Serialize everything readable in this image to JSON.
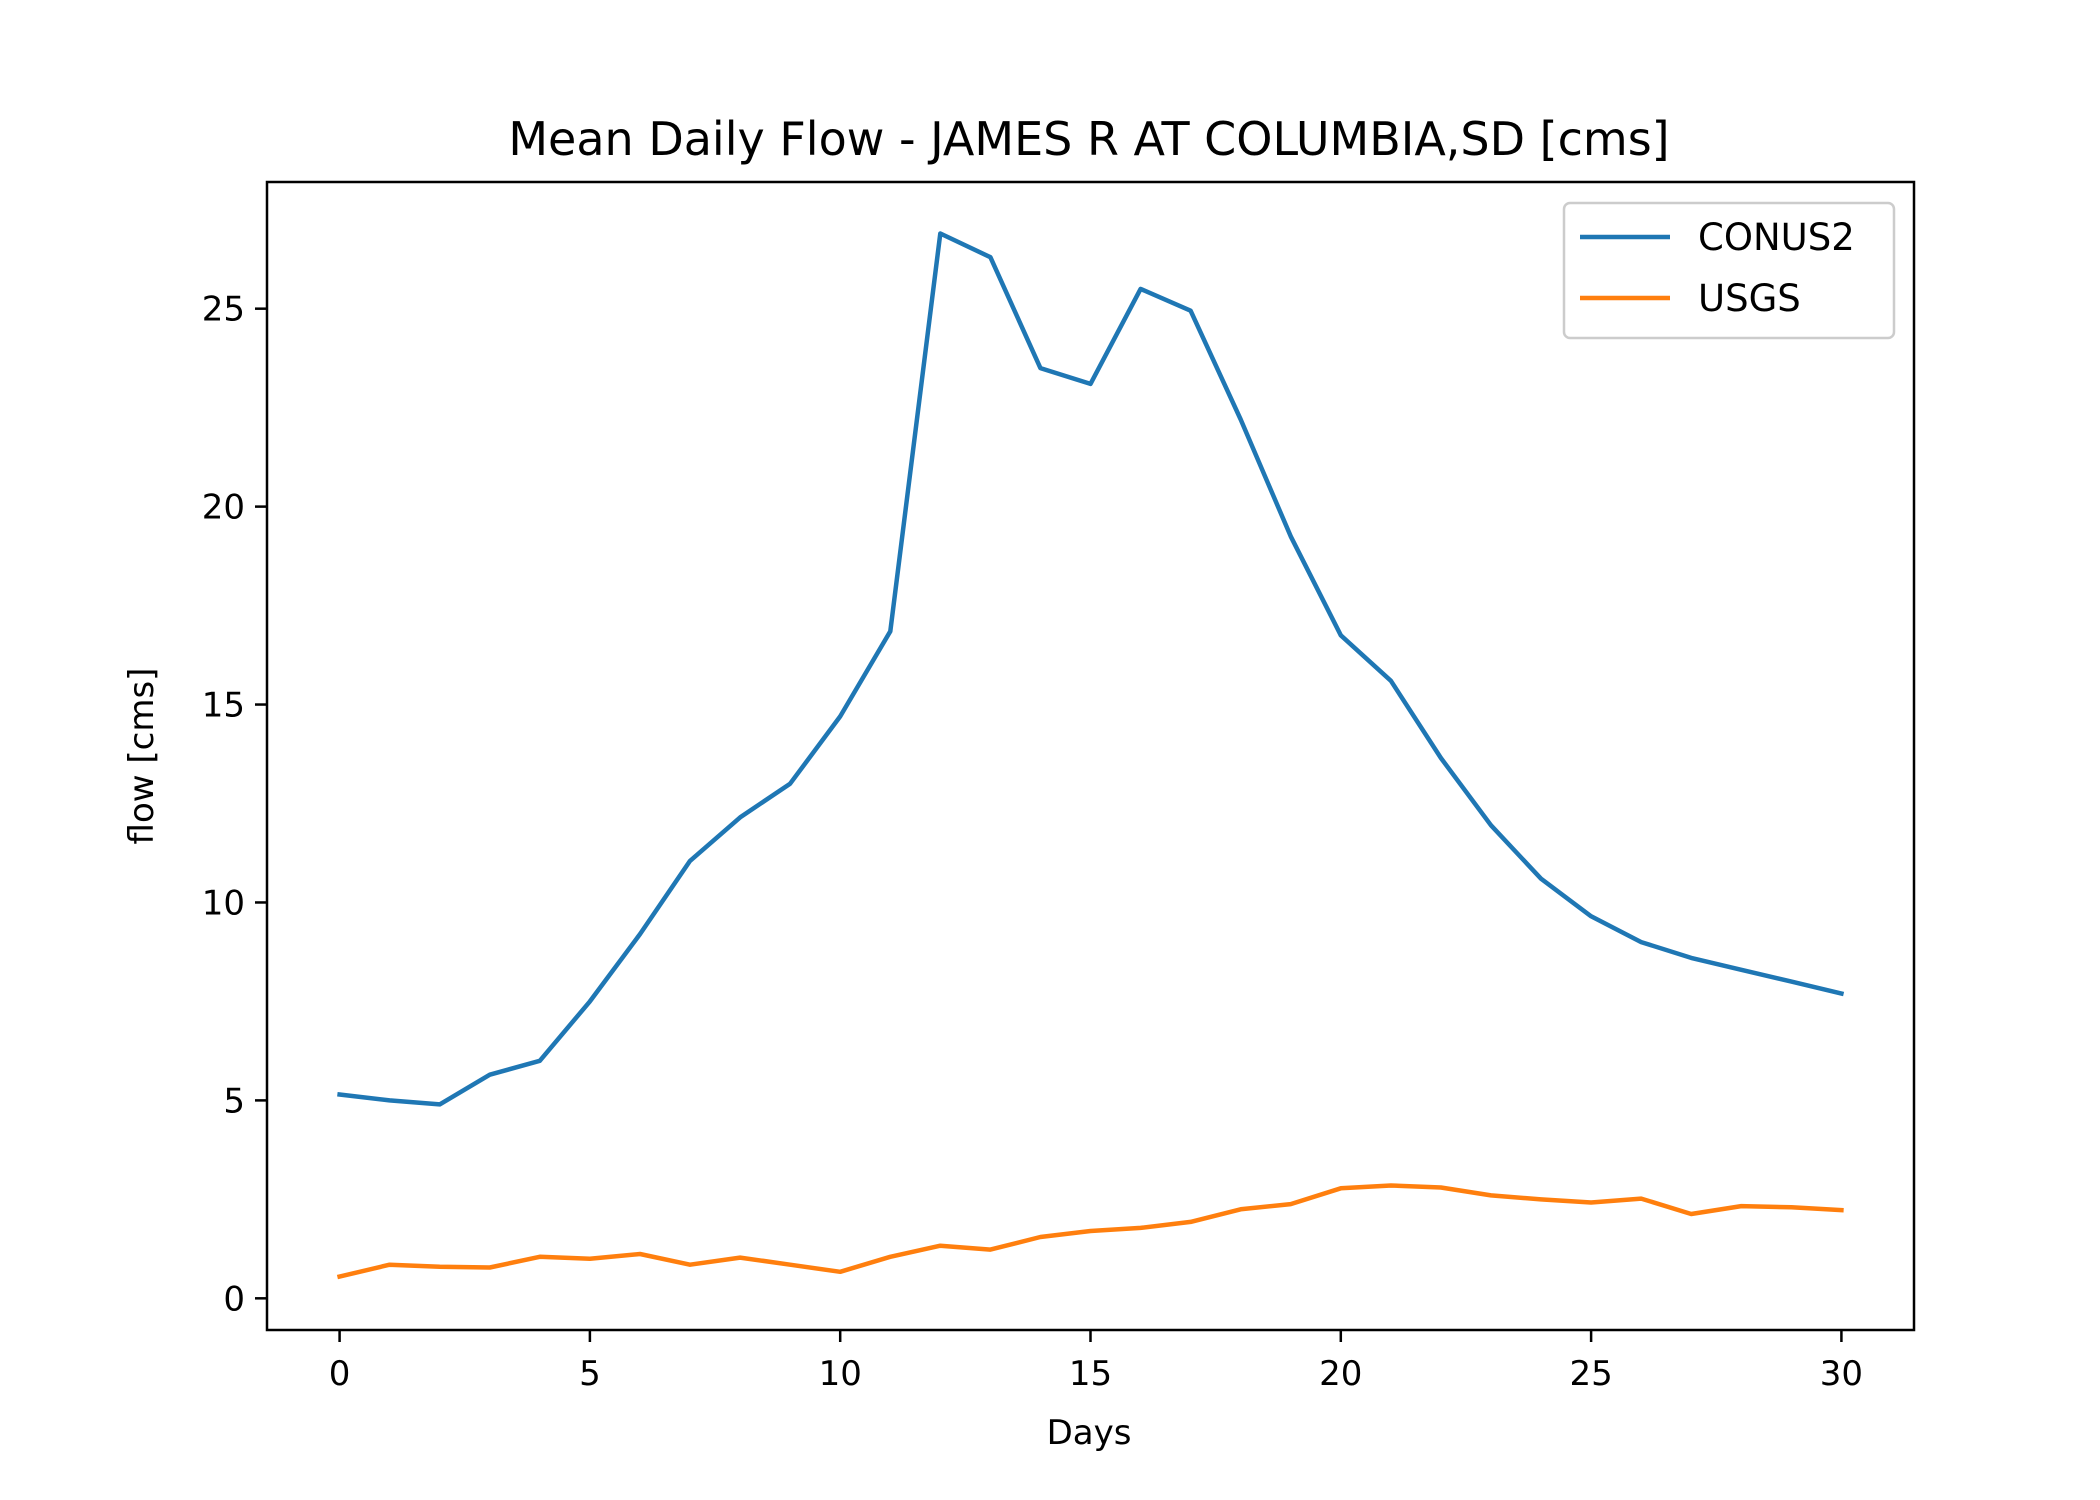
{
  "chart_data": {
    "type": "line",
    "title": "Mean Daily Flow - JAMES R AT COLUMBIA,SD [cms]",
    "xlabel": "Days",
    "ylabel": "flow [cms]",
    "xlim": [
      -1.45,
      31.45
    ],
    "ylim": [
      -0.8,
      28.2
    ],
    "xticks": [
      0,
      5,
      10,
      15,
      20,
      25,
      30
    ],
    "yticks": [
      0,
      5,
      10,
      15,
      20,
      25
    ],
    "grid": false,
    "legend_position": "top-right",
    "x": [
      0,
      1,
      2,
      3,
      4,
      5,
      6,
      7,
      8,
      9,
      10,
      11,
      12,
      13,
      14,
      15,
      16,
      17,
      18,
      19,
      20,
      21,
      22,
      23,
      24,
      25,
      26,
      27,
      28,
      29,
      30
    ],
    "series": [
      {
        "name": "CONUS2",
        "color": "#1f77b4",
        "values": [
          5.15,
          5.0,
          4.9,
          5.65,
          6.0,
          7.5,
          9.2,
          11.05,
          12.15,
          13.0,
          14.7,
          16.85,
          26.9,
          26.3,
          23.5,
          23.1,
          25.5,
          24.95,
          22.2,
          19.25,
          16.75,
          15.6,
          13.65,
          11.95,
          10.6,
          9.65,
          9.0,
          8.6,
          8.3,
          8.0,
          7.7
        ]
      },
      {
        "name": "USGS",
        "color": "#ff7f0e",
        "values": [
          0.55,
          0.85,
          0.8,
          0.78,
          1.05,
          1.0,
          1.12,
          0.85,
          1.03,
          0.85,
          0.67,
          1.05,
          1.33,
          1.23,
          1.55,
          1.7,
          1.78,
          1.93,
          2.25,
          2.38,
          2.78,
          2.85,
          2.8,
          2.6,
          2.5,
          2.42,
          2.52,
          2.13,
          2.33,
          2.3,
          2.23
        ]
      }
    ]
  }
}
